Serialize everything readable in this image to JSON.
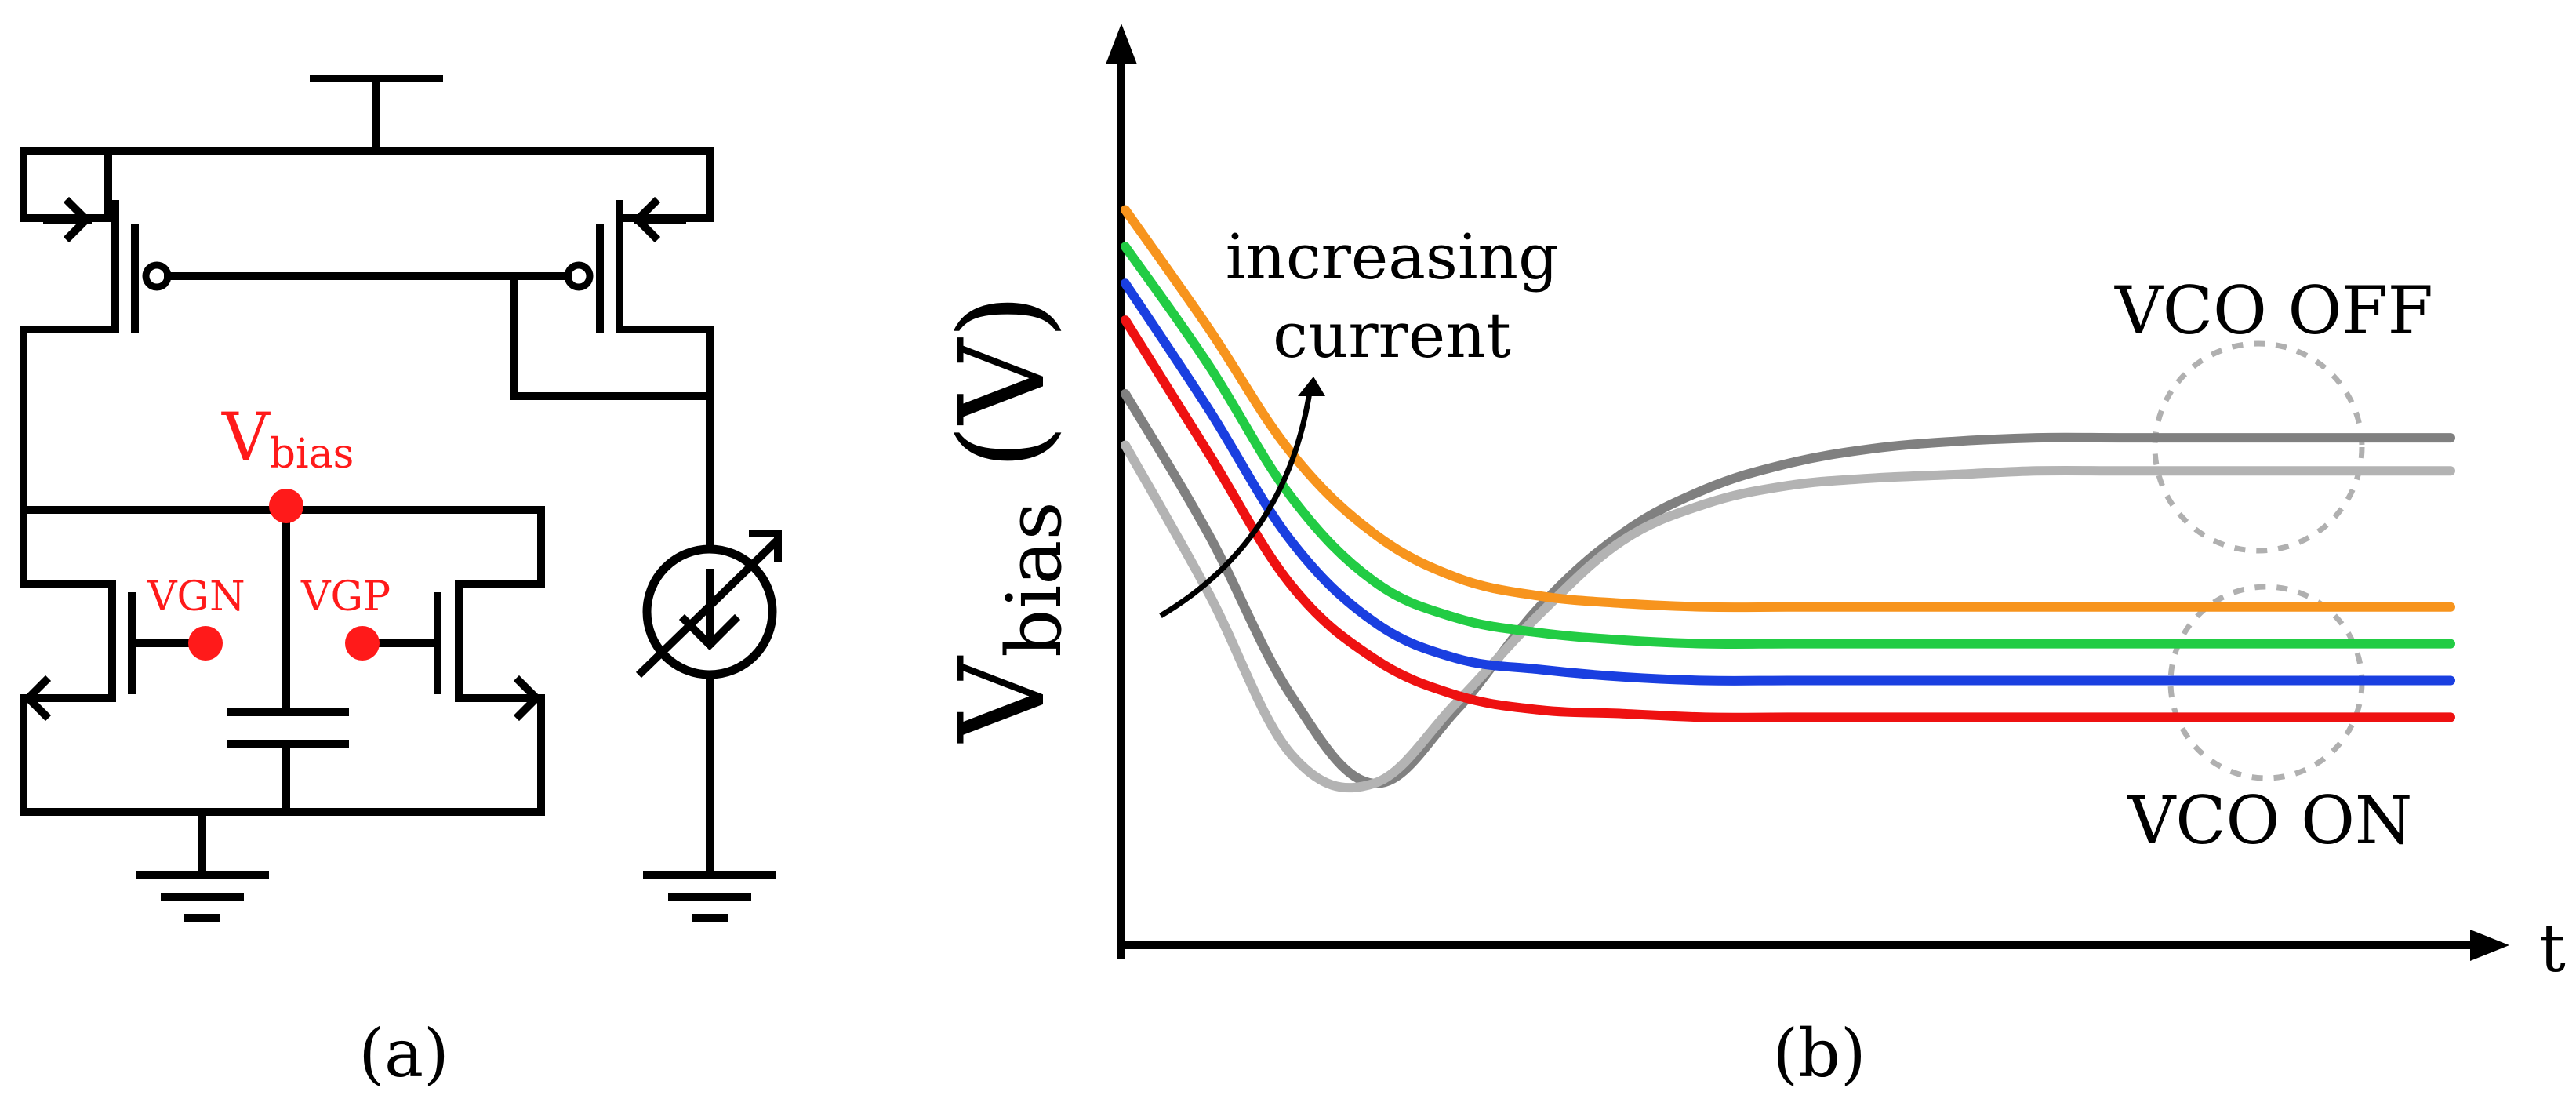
{
  "panel_a": {
    "caption": "(a)",
    "vbias_main": "V",
    "vbias_sub": "bias",
    "vgn_label": "VGN",
    "vgp_label": "VGP"
  },
  "panel_b": {
    "caption": "(b)",
    "ylabel_main": "V",
    "ylabel_sub": "bias",
    "ylabel_unit": "(V)",
    "xlabel": "t",
    "annotation_line1": "increasing",
    "annotation_line2": "current",
    "vco_off_label": "VCO OFF",
    "vco_on_label": "VCO ON"
  },
  "colors": {
    "accent_red": "#ff1a1a",
    "orange": "#f7941d",
    "green": "#22cc44",
    "blue": "#1a3fe0",
    "red": "#ee1111",
    "dark_gray": "#808080",
    "light_gray": "#b3b3b3",
    "circle_gray": "#b0b0b0"
  },
  "chart_data": {
    "type": "line",
    "title": "",
    "xlabel": "t",
    "ylabel": "Vbias (V)",
    "x": [
      0,
      1,
      2,
      3,
      4,
      5,
      6,
      7,
      8,
      9,
      10,
      11,
      12,
      13,
      14,
      15,
      16
    ],
    "series": [
      {
        "name": "orange (VCO ON)",
        "color": "orange",
        "values": [
          10.0,
          8.4,
          6.7,
          5.6,
          5.0,
          4.75,
          4.65,
          4.6,
          4.6,
          4.6,
          4.6,
          4.6,
          4.6,
          4.6,
          4.6,
          4.6,
          4.6
        ]
      },
      {
        "name": "green (VCO ON)",
        "color": "green",
        "values": [
          9.5,
          7.9,
          6.1,
          4.95,
          4.45,
          4.25,
          4.15,
          4.1,
          4.1,
          4.1,
          4.1,
          4.1,
          4.1,
          4.1,
          4.1,
          4.1,
          4.1
        ]
      },
      {
        "name": "blue (VCO ON)",
        "color": "blue",
        "values": [
          9.0,
          7.3,
          5.5,
          4.4,
          3.9,
          3.75,
          3.65,
          3.6,
          3.6,
          3.6,
          3.6,
          3.6,
          3.6,
          3.6,
          3.6,
          3.6,
          3.6
        ]
      },
      {
        "name": "red (VCO ON)",
        "color": "red",
        "values": [
          8.5,
          6.7,
          4.9,
          3.9,
          3.4,
          3.2,
          3.15,
          3.1,
          3.1,
          3.1,
          3.1,
          3.1,
          3.1,
          3.1,
          3.1,
          3.1,
          3.1
        ]
      },
      {
        "name": "dark gray (VCO OFF)",
        "color": "dark_gray",
        "values": [
          7.5,
          5.6,
          3.4,
          2.2,
          3.2,
          4.6,
          5.6,
          6.2,
          6.55,
          6.75,
          6.85,
          6.9,
          6.9,
          6.9,
          6.9,
          6.9,
          6.9
        ]
      },
      {
        "name": "light gray (VCO OFF)",
        "color": "light_gray",
        "values": [
          6.8,
          4.8,
          2.6,
          2.2,
          3.3,
          4.5,
          5.5,
          6.0,
          6.25,
          6.35,
          6.4,
          6.45,
          6.45,
          6.45,
          6.45,
          6.45,
          6.45
        ]
      }
    ],
    "ylim": [
      0,
      12
    ],
    "grid": false
  }
}
